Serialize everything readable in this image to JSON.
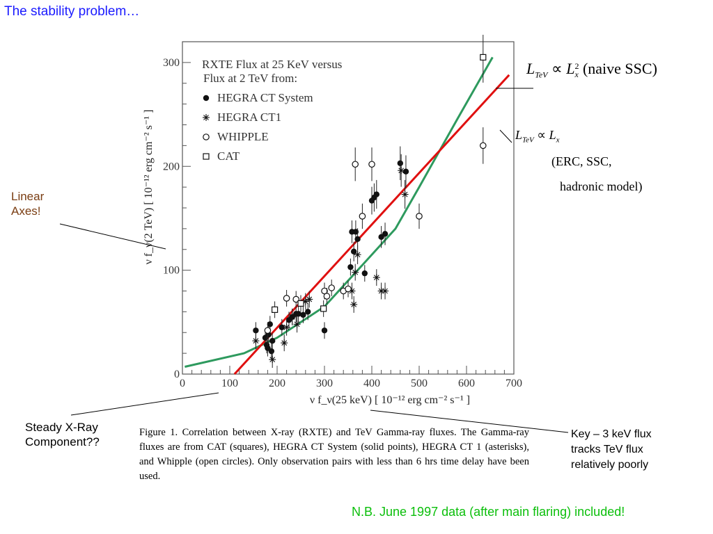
{
  "slide": {
    "title": "The stability problem…",
    "callout_linear": "Linear\nAxes!",
    "callout_steady": "Steady X-Ray\nComponent??",
    "note_key": "Key – 3 keV flux\ntracks TeV flux\nrelatively poorly",
    "nb": "N.B. June 1997 data (after main flaring) included!",
    "colors": {
      "title": "#1a1aff",
      "callout_brown": "#7a3d12",
      "nb": "#0bbf0b",
      "red_fit": "#e01010",
      "green_fit": "#2e9a5e"
    }
  },
  "formulas": {
    "naive": {
      "lhs": "L",
      "lhs_sub": "TeV",
      "prop": "∝",
      "rhs": "L",
      "rhs_sup": "2",
      "rhs_sub": "x",
      "label": "(naive SSC)"
    },
    "linear": {
      "lhs": "L",
      "lhs_sub": "TeV",
      "prop": "∝",
      "rhs": "L",
      "rhs_sub": "x",
      "line1": "(ERC, SSC,",
      "line2": "hadronic model)"
    }
  },
  "figure_caption": "Figure 1. Correlation between X-ray (RXTE) and TeV Gamma-ray fluxes. The Gamma-ray fluxes are from CAT (squares), HEGRA CT System (solid points), HEGRA CT 1 (asterisks), and Whipple (open circles). Only observation pairs with less than 6 hrs time delay have been used.",
  "chart_data": {
    "type": "scatter",
    "title": "RXTE Flux at 25 KeV versus Flux at 2 TeV from:",
    "xlabel": "ν f_ν(25 keV) [ 10⁻¹² erg cm⁻² s⁻¹ ]",
    "ylabel": "ν f_ν(2 TeV) [ 10⁻¹² erg cm⁻² s⁻¹ ]",
    "xlim": [
      0,
      700
    ],
    "ylim": [
      0,
      320
    ],
    "x_ticks": [
      0,
      100,
      200,
      300,
      400,
      500,
      600,
      700
    ],
    "y_ticks": [
      0,
      100,
      200,
      300
    ],
    "grid": false,
    "legend_position": "top-left",
    "series": [
      {
        "name": "HEGRA CT System",
        "marker": "filled-circle",
        "points": [
          [
            155,
            42
          ],
          [
            175,
            35
          ],
          [
            178,
            28
          ],
          [
            180,
            25
          ],
          [
            182,
            38
          ],
          [
            185,
            48
          ],
          [
            188,
            22
          ],
          [
            190,
            32
          ],
          [
            210,
            45
          ],
          [
            225,
            52
          ],
          [
            232,
            55
          ],
          [
            240,
            58
          ],
          [
            245,
            58
          ],
          [
            255,
            57
          ],
          [
            265,
            60
          ],
          [
            300,
            42
          ],
          [
            355,
            103
          ],
          [
            358,
            137
          ],
          [
            362,
            118
          ],
          [
            366,
            137
          ],
          [
            370,
            130
          ],
          [
            385,
            97
          ],
          [
            400,
            167
          ],
          [
            405,
            170
          ],
          [
            410,
            173
          ],
          [
            420,
            132
          ],
          [
            428,
            135
          ],
          [
            460,
            203
          ],
          [
            472,
            195
          ]
        ]
      },
      {
        "name": "HEGRA CT1",
        "marker": "asterisk",
        "points": [
          [
            155,
            32
          ],
          [
            190,
            14
          ],
          [
            215,
            30
          ],
          [
            220,
            45
          ],
          [
            232,
            55
          ],
          [
            242,
            48
          ],
          [
            260,
            70
          ],
          [
            268,
            72
          ],
          [
            358,
            80
          ],
          [
            362,
            67
          ],
          [
            365,
            98
          ],
          [
            370,
            115
          ],
          [
            410,
            93
          ],
          [
            420,
            80
          ],
          [
            428,
            80
          ],
          [
            462,
            196
          ],
          [
            470,
            173
          ]
        ]
      },
      {
        "name": "WHIPPLE",
        "marker": "open-circle",
        "points": [
          [
            180,
            42
          ],
          [
            220,
            73
          ],
          [
            240,
            72
          ],
          [
            300,
            80
          ],
          [
            305,
            75
          ],
          [
            315,
            83
          ],
          [
            340,
            80
          ],
          [
            350,
            82
          ],
          [
            365,
            202
          ],
          [
            380,
            152
          ],
          [
            400,
            202
          ],
          [
            500,
            152
          ],
          [
            635,
            220
          ]
        ]
      },
      {
        "name": "CAT",
        "marker": "open-square",
        "points": [
          [
            195,
            62
          ],
          [
            250,
            68
          ],
          [
            298,
            63
          ],
          [
            635,
            305
          ]
        ]
      }
    ],
    "fits": [
      {
        "name": "naive SSC",
        "color": "#2e9a5e",
        "points": [
          [
            5,
            7
          ],
          [
            130,
            20
          ],
          [
            200,
            35
          ],
          [
            300,
            65
          ],
          [
            380,
            105
          ],
          [
            450,
            140
          ],
          [
            500,
            180
          ],
          [
            580,
            245
          ],
          [
            655,
            305
          ]
        ]
      },
      {
        "name": "linear",
        "color": "#e01010",
        "points": [
          [
            110,
            0
          ],
          [
            690,
            288
          ]
        ]
      }
    ]
  }
}
